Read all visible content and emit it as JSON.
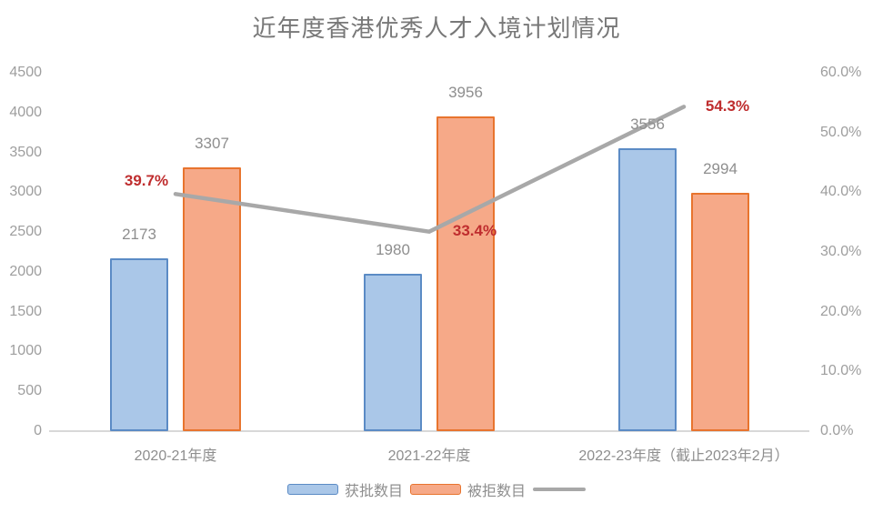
{
  "title": "近年度香港优秀人才入境计划情况",
  "colors": {
    "approved_fill": "#aac7e8",
    "approved_border": "#5b8bc5",
    "rejected_fill": "#f6a988",
    "rejected_border": "#e8742e",
    "trend_line": "#a8a8a8",
    "pct_label": "#bf2d2e",
    "value_label": "#8e8e8e",
    "axis_text": "#9e9e9e",
    "title_text": "#787878",
    "axis_line": "#d8d8d8"
  },
  "chart_data": {
    "type": "bar",
    "subtype": "grouped bars with secondary-axis line",
    "title": "近年度香港优秀人才入境计划情况",
    "categories": [
      "2020-21年度",
      "2021-22年度",
      "2022-23年度（截止2023年2月）"
    ],
    "series": [
      {
        "name": "获批数目",
        "type": "bar",
        "axis": "left",
        "values": [
          2173,
          1980,
          3556
        ]
      },
      {
        "name": "被拒数目",
        "type": "bar",
        "axis": "left",
        "values": [
          3307,
          3956,
          2994
        ]
      },
      {
        "name": "",
        "type": "line",
        "axis": "right",
        "values": [
          39.7,
          33.4,
          54.3
        ],
        "point_labels": [
          "39.7%",
          "33.4%",
          "54.3%"
        ]
      }
    ],
    "left_axis": {
      "min": 0,
      "max": 4500,
      "step": 500,
      "ticks": [
        "4500",
        "4000",
        "3500",
        "3000",
        "2500",
        "2000",
        "1500",
        "1000",
        "500",
        "0"
      ]
    },
    "right_axis": {
      "min": 0,
      "max": 60,
      "step": 10,
      "ticks": [
        "60.0%",
        "50.0%",
        "40.0%",
        "30.0%",
        "20.0%",
        "10.0%",
        "0.0%"
      ]
    },
    "grid": false,
    "legend_position": "bottom",
    "legend": [
      {
        "label": "获批数目",
        "swatch": "approved"
      },
      {
        "label": "被拒数目",
        "swatch": "rejected"
      },
      {
        "label": "",
        "swatch": "trend"
      }
    ]
  }
}
